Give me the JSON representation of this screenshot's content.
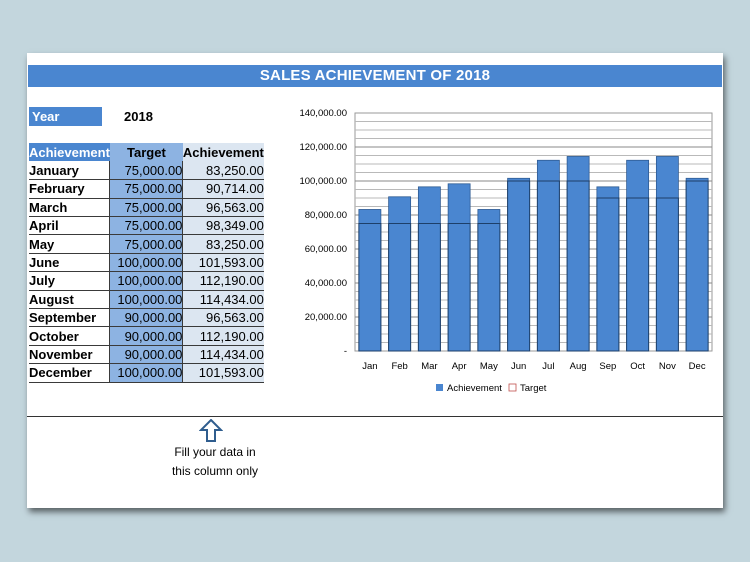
{
  "sheet": {
    "title": "SALES ACHIEVEMENT OF 2018",
    "year_label": "Year",
    "year_value": "2018",
    "table": {
      "headers": [
        "Achievement",
        "Target",
        "Achievement"
      ],
      "rows": [
        {
          "month": "January",
          "target": "75,000.00",
          "achievement": "83,250.00"
        },
        {
          "month": "February",
          "target": "75,000.00",
          "achievement": "90,714.00"
        },
        {
          "month": "March",
          "target": "75,000.00",
          "achievement": "96,563.00"
        },
        {
          "month": "April",
          "target": "75,000.00",
          "achievement": "98,349.00"
        },
        {
          "month": "May",
          "target": "75,000.00",
          "achievement": "83,250.00"
        },
        {
          "month": "June",
          "target": "100,000.00",
          "achievement": "101,593.00"
        },
        {
          "month": "July",
          "target": "100,000.00",
          "achievement": "112,190.00"
        },
        {
          "month": "August",
          "target": "100,000.00",
          "achievement": "114,434.00"
        },
        {
          "month": "September",
          "target": "90,000.00",
          "achievement": "96,563.00"
        },
        {
          "month": "October",
          "target": "90,000.00",
          "achievement": "112,190.00"
        },
        {
          "month": "November",
          "target": "90,000.00",
          "achievement": "114,434.00"
        },
        {
          "month": "December",
          "target": "100,000.00",
          "achievement": "101,593.00"
        }
      ]
    },
    "note": "Fill your data in this column only",
    "note_icon": "up-arrow-icon"
  },
  "colors": {
    "accent": "#4a86d0",
    "target_fill": "#8db3e2",
    "achievement_fill": "#dce6f1",
    "background": "#c3d6dd"
  },
  "chart_data": {
    "type": "bar",
    "categories": [
      "Jan",
      "Feb",
      "Mar",
      "Apr",
      "May",
      "Jun",
      "Jul",
      "Aug",
      "Sep",
      "Oct",
      "Nov",
      "Dec"
    ],
    "series": [
      {
        "name": "Achievement",
        "values": [
          83250,
          90714,
          96563,
          98349,
          83250,
          101593,
          112190,
          114434,
          96563,
          112190,
          114434,
          101593
        ],
        "color": "#4a86d0"
      },
      {
        "name": "Target",
        "values": [
          75000,
          75000,
          75000,
          75000,
          75000,
          100000,
          100000,
          100000,
          90000,
          90000,
          90000,
          100000
        ],
        "color": "#4a86d0"
      }
    ],
    "overlap": true,
    "ylim": [
      0,
      140000
    ],
    "yticks": [
      0,
      20000,
      40000,
      60000,
      80000,
      100000,
      120000,
      140000
    ],
    "ytick_labels": [
      "-",
      "20,000.00",
      "40,000.00",
      "60,000.00",
      "80,000.00",
      "100,000.00",
      "120,000.00",
      "140,000.00"
    ],
    "minor_gridlines": true,
    "legend": "bottom"
  }
}
